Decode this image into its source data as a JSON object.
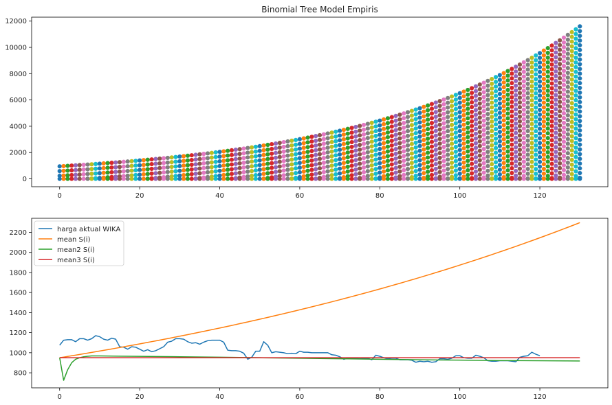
{
  "chart_data": [
    {
      "type": "scatter",
      "title": "Binomial Tree Model Empiris",
      "xlabel": "",
      "ylabel": "",
      "xlim": [
        -7,
        137
      ],
      "ylim": [
        -600,
        12300
      ],
      "xticks": [
        0,
        20,
        40,
        60,
        80,
        100,
        120
      ],
      "yticks": [
        0,
        2000,
        4000,
        6000,
        8000,
        10000,
        12000
      ],
      "grid": false,
      "series_model": {
        "steps": 130,
        "s0": 950,
        "max_at_step_130": 11600,
        "min_level": 0,
        "point_spacing_per_column": 360
      },
      "palette": [
        "#1f77b4",
        "#ff7f0e",
        "#2ca02c",
        "#d62728",
        "#9467bd",
        "#8c564b",
        "#e377c2",
        "#7f7f7f",
        "#bcbd22",
        "#17becf"
      ]
    },
    {
      "type": "line",
      "title": "",
      "xlabel": "",
      "ylabel": "",
      "xlim": [
        -7,
        137
      ],
      "ylim": [
        650,
        2340
      ],
      "xticks": [
        0,
        20,
        40,
        60,
        80,
        100,
        120
      ],
      "yticks": [
        800,
        1000,
        1200,
        1400,
        1600,
        1800,
        2000,
        2200
      ],
      "grid": false,
      "legend_position": "upper-left",
      "series": [
        {
          "name": "harga aktual WIKA",
          "color": "#1f77b4",
          "points": [
            [
              0,
              1075
            ],
            [
              1,
              1125
            ],
            [
              2,
              1130
            ],
            [
              3,
              1130
            ],
            [
              4,
              1110
            ],
            [
              5,
              1140
            ],
            [
              6,
              1140
            ],
            [
              7,
              1125
            ],
            [
              8,
              1140
            ],
            [
              9,
              1170
            ],
            [
              10,
              1160
            ],
            [
              11,
              1135
            ],
            [
              12,
              1125
            ],
            [
              13,
              1145
            ],
            [
              14,
              1135
            ],
            [
              15,
              1060
            ],
            [
              16,
              1055
            ],
            [
              17,
              1035
            ],
            [
              18,
              1060
            ],
            [
              19,
              1055
            ],
            [
              20,
              1035
            ],
            [
              21,
              1015
            ],
            [
              22,
              1030
            ],
            [
              23,
              1010
            ],
            [
              24,
              1020
            ],
            [
              25,
              1040
            ],
            [
              26,
              1060
            ],
            [
              27,
              1105
            ],
            [
              28,
              1115
            ],
            [
              29,
              1140
            ],
            [
              30,
              1140
            ],
            [
              31,
              1135
            ],
            [
              32,
              1110
            ],
            [
              33,
              1095
            ],
            [
              34,
              1100
            ],
            [
              35,
              1085
            ],
            [
              36,
              1105
            ],
            [
              37,
              1120
            ],
            [
              38,
              1125
            ],
            [
              39,
              1125
            ],
            [
              40,
              1125
            ],
            [
              41,
              1105
            ],
            [
              42,
              1025
            ],
            [
              43,
              1020
            ],
            [
              44,
              1020
            ],
            [
              45,
              1015
            ],
            [
              46,
              995
            ],
            [
              47,
              935
            ],
            [
              48,
              955
            ],
            [
              49,
              1015
            ],
            [
              50,
              1015
            ],
            [
              51,
              1110
            ],
            [
              52,
              1075
            ],
            [
              53,
              1000
            ],
            [
              54,
              1010
            ],
            [
              55,
              1005
            ],
            [
              56,
              1000
            ],
            [
              57,
              990
            ],
            [
              58,
              995
            ],
            [
              59,
              990
            ],
            [
              60,
              1015
            ],
            [
              61,
              1005
            ],
            [
              62,
              1005
            ],
            [
              63,
              1000
            ],
            [
              64,
              1000
            ],
            [
              65,
              1000
            ],
            [
              66,
              1000
            ],
            [
              67,
              1000
            ],
            [
              68,
              980
            ],
            [
              69,
              975
            ],
            [
              70,
              960
            ],
            [
              71,
              935
            ],
            [
              72,
              945
            ],
            [
              73,
              945
            ],
            [
              74,
              945
            ],
            [
              75,
              940
            ],
            [
              76,
              945
            ],
            [
              77,
              945
            ],
            [
              78,
              930
            ],
            [
              79,
              975
            ],
            [
              80,
              965
            ],
            [
              81,
              950
            ],
            [
              82,
              940
            ],
            [
              83,
              945
            ],
            [
              84,
              945
            ],
            [
              85,
              930
            ],
            [
              86,
              930
            ],
            [
              87,
              930
            ],
            [
              88,
              925
            ],
            [
              89,
              905
            ],
            [
              90,
              915
            ],
            [
              91,
              910
            ],
            [
              92,
              915
            ],
            [
              93,
              905
            ],
            [
              94,
              910
            ],
            [
              95,
              940
            ],
            [
              96,
              940
            ],
            [
              97,
              935
            ],
            [
              98,
              945
            ],
            [
              99,
              970
            ],
            [
              100,
              970
            ],
            [
              101,
              950
            ],
            [
              102,
              945
            ],
            [
              103,
              945
            ],
            [
              104,
              975
            ],
            [
              105,
              965
            ],
            [
              106,
              950
            ],
            [
              107,
              920
            ],
            [
              108,
              915
            ],
            [
              109,
              915
            ],
            [
              110,
              920
            ],
            [
              111,
              920
            ],
            [
              112,
              920
            ],
            [
              113,
              915
            ],
            [
              114,
              910
            ],
            [
              115,
              955
            ],
            [
              116,
              965
            ],
            [
              117,
              970
            ],
            [
              118,
              1005
            ],
            [
              119,
              985
            ],
            [
              120,
              970
            ]
          ]
        },
        {
          "name": "mean S(i)",
          "color": "#ff7f0e",
          "model": {
            "type": "exponential",
            "start": 950,
            "daily_rate": 0.00679,
            "x_range": [
              0,
              130
            ]
          }
        },
        {
          "name": "mean2 S(i)",
          "color": "#2ca02c",
          "points": [
            [
              0,
              950
            ],
            [
              1,
              725
            ],
            [
              2,
              830
            ],
            [
              3,
              900
            ],
            [
              4,
              935
            ],
            [
              5,
              950
            ],
            [
              6,
              960
            ],
            [
              7,
              965
            ],
            [
              8,
              968
            ],
            [
              9,
              968
            ],
            [
              10,
              968
            ],
            [
              15,
              966
            ],
            [
              20,
              964
            ],
            [
              30,
              960
            ],
            [
              40,
              955
            ],
            [
              50,
              950
            ],
            [
              60,
              945
            ],
            [
              70,
              940
            ],
            [
              80,
              935
            ],
            [
              90,
              930
            ],
            [
              100,
              926
            ],
            [
              110,
              922
            ],
            [
              120,
              920
            ],
            [
              130,
              918
            ]
          ]
        },
        {
          "name": "mean3 S(i)",
          "color": "#d62728",
          "points": [
            [
              0,
              950
            ],
            [
              130,
              950
            ]
          ]
        }
      ]
    }
  ]
}
